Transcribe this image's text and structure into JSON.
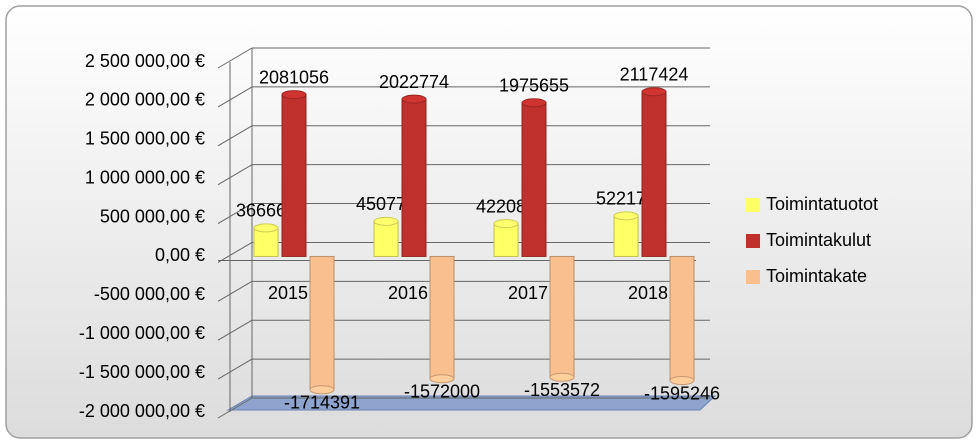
{
  "chart_data": {
    "type": "bar",
    "categories": [
      "2015",
      "2016",
      "2017",
      "2018"
    ],
    "series": [
      {
        "name": "Toimintatuotot",
        "color": "#ffff66",
        "values": [
          366665,
          450774,
          422084,
          522178
        ]
      },
      {
        "name": "Toimintakulut",
        "color": "#c0302c",
        "values": [
          2081056,
          2022774,
          1975655,
          2117424
        ]
      },
      {
        "name": "Toimintakate",
        "color": "#f9bf8f",
        "values": [
          -1714391,
          -1572000,
          -1553572,
          -1595246
        ]
      }
    ],
    "ylim": [
      -2000000,
      2500000
    ],
    "yticks": [
      {
        "value": -2000000,
        "label": "-2 000 000,00 €"
      },
      {
        "value": -1500000,
        "label": "-1 500 000,00 €"
      },
      {
        "value": -1000000,
        "label": "-1 000 000,00 €"
      },
      {
        "value": -500000,
        "label": "-500 000,00 €"
      },
      {
        "value": 0,
        "label": "0,00 €"
      },
      {
        "value": 500000,
        "label": "500 000,00 €"
      },
      {
        "value": 1000000,
        "label": "1 000 000,00 €"
      },
      {
        "value": 1500000,
        "label": "1 500 000,00 €"
      },
      {
        "value": 2000000,
        "label": "2 000 000,00 €"
      },
      {
        "value": 2500000,
        "label": "2 500 000,00 €"
      }
    ],
    "grid": true,
    "legend": "right"
  }
}
